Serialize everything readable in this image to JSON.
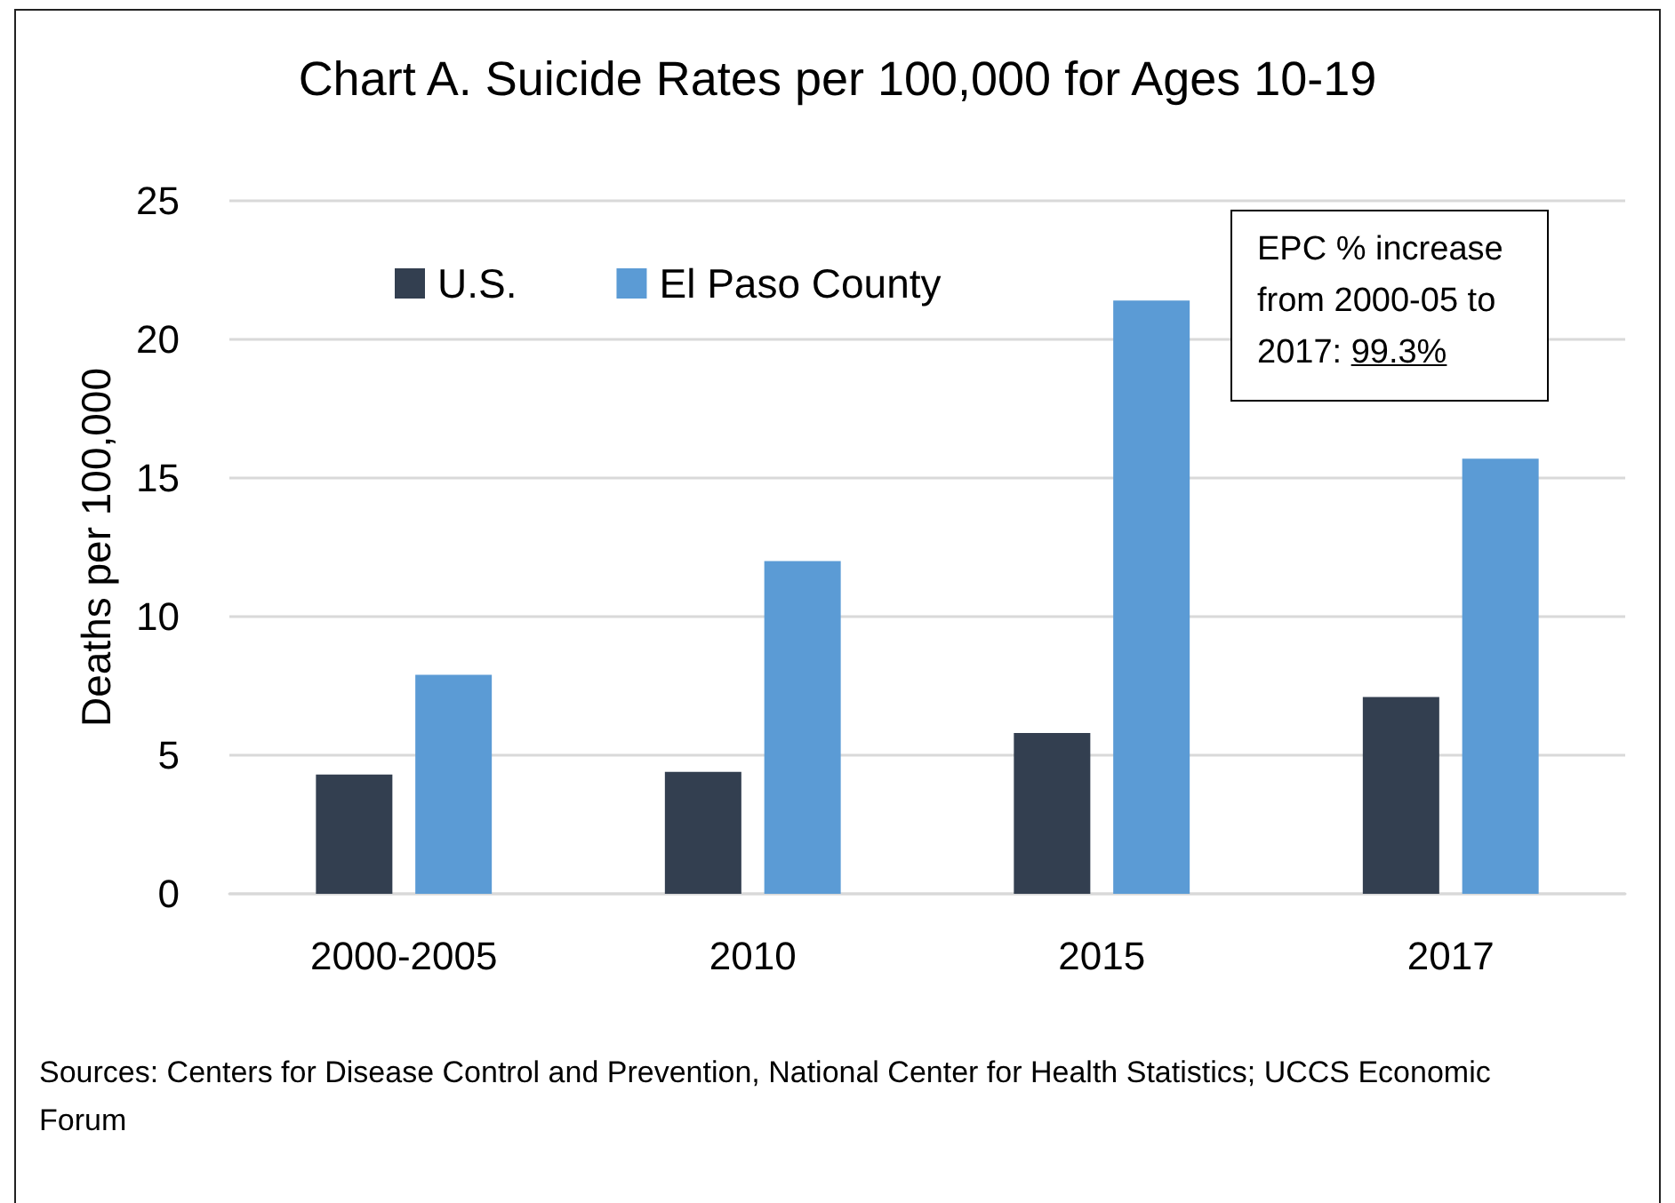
{
  "chart_data": {
    "type": "bar",
    "title": "Chart A. Suicide Rates per 100,000 for Ages 10-19",
    "ylabel": "Deaths per 100,000",
    "categories": [
      "2000-2005",
      "2010",
      "2015",
      "2017"
    ],
    "series": [
      {
        "name": "U.S.",
        "color": "#333f50",
        "values": [
          4.3,
          4.4,
          5.8,
          7.1
        ]
      },
      {
        "name": "El Paso County",
        "color": "#5b9bd5",
        "values": [
          7.9,
          12.0,
          21.4,
          15.7
        ]
      }
    ],
    "ylim": [
      0,
      25
    ],
    "yticks": [
      0,
      5,
      10,
      15,
      20,
      25
    ],
    "grid": "y",
    "legend": "top left",
    "annotations": [
      "EPC % increase from 2000-05 to 2017: 99.3%",
      "Sources: Centers for Disease Control and Prevention, National Center for Health Statistics; UCCS Economic Forum"
    ]
  }
}
